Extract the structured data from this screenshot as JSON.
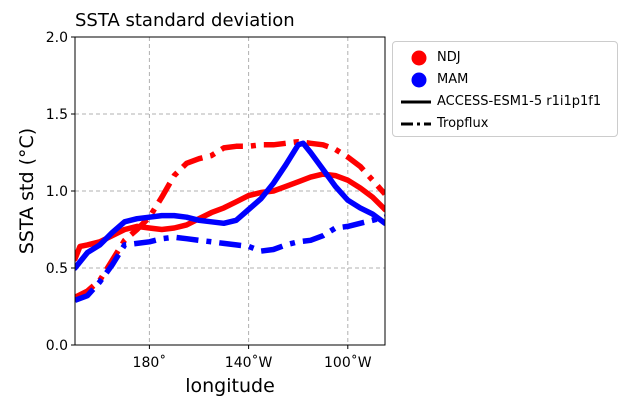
{
  "chart_data": {
    "type": "line",
    "title": "SSTA standard deviation",
    "xlabel": "longitude",
    "ylabel": "SSTA std ($^\\circ$C)",
    "ylabel_display": "SSTA std (°C)",
    "xlim": [
      150,
      275
    ],
    "ylim": [
      0.0,
      2.0
    ],
    "yticks": [
      0.0,
      0.5,
      1.0,
      1.5,
      2.0
    ],
    "ytick_labels": [
      "0.0",
      "0.5",
      "1.0",
      "1.5",
      "2.0"
    ],
    "xticks": [
      180,
      220,
      260
    ],
    "xtick_labels": [
      "180˚",
      "140˚W",
      "100˚W"
    ],
    "grid": true,
    "legend_placement": "outside-right-top",
    "colors": {
      "NDJ": "#ff0000",
      "MAM": "#0000ff"
    },
    "legend": [
      {
        "label": "NDJ",
        "marker": "circle",
        "color": "#ff0000"
      },
      {
        "label": "MAM",
        "marker": "circle",
        "color": "#0000ff"
      },
      {
        "label": "ACCESS-ESM1-5 r1i1p1f1",
        "linestyle": "solid",
        "color": "#000000"
      },
      {
        "label": "Tropflux",
        "linestyle": "dashdot",
        "color": "#000000"
      }
    ],
    "series": [
      {
        "season": "NDJ",
        "source": "ACCESS-ESM1-5 r1i1p1f1",
        "color": "#ff0000",
        "linestyle": "solid",
        "x": [
          150,
          152,
          155,
          160,
          165,
          170,
          175,
          180,
          185,
          190,
          195,
          200,
          205,
          210,
          215,
          220,
          225,
          230,
          235,
          240,
          245,
          250,
          255,
          260,
          265,
          270,
          275
        ],
        "y": [
          0.56,
          0.64,
          0.65,
          0.67,
          0.71,
          0.75,
          0.77,
          0.76,
          0.75,
          0.76,
          0.78,
          0.82,
          0.86,
          0.89,
          0.93,
          0.97,
          0.99,
          1.0,
          1.03,
          1.06,
          1.09,
          1.11,
          1.1,
          1.07,
          1.02,
          0.96,
          0.88
        ]
      },
      {
        "season": "NDJ",
        "source": "Tropflux",
        "color": "#ff0000",
        "linestyle": "dashdot",
        "x": [
          150,
          155,
          160,
          165,
          170,
          175,
          180,
          185,
          190,
          195,
          200,
          205,
          210,
          215,
          220,
          225,
          230,
          235,
          240,
          245,
          250,
          255,
          260,
          265,
          270,
          275
        ],
        "y": [
          0.31,
          0.35,
          0.42,
          0.55,
          0.68,
          0.75,
          0.83,
          0.96,
          1.1,
          1.18,
          1.21,
          1.23,
          1.28,
          1.29,
          1.29,
          1.3,
          1.3,
          1.31,
          1.32,
          1.31,
          1.3,
          1.27,
          1.22,
          1.16,
          1.07,
          0.98
        ]
      },
      {
        "season": "MAM",
        "source": "ACCESS-ESM1-5 r1i1p1f1",
        "color": "#0000ff",
        "linestyle": "solid",
        "x": [
          150,
          155,
          160,
          165,
          170,
          175,
          180,
          185,
          190,
          195,
          200,
          205,
          210,
          215,
          220,
          225,
          230,
          235,
          240,
          242,
          245,
          250,
          255,
          260,
          265,
          270,
          275
        ],
        "y": [
          0.5,
          0.6,
          0.65,
          0.73,
          0.8,
          0.82,
          0.83,
          0.84,
          0.84,
          0.83,
          0.81,
          0.8,
          0.79,
          0.81,
          0.88,
          0.95,
          1.05,
          1.17,
          1.3,
          1.31,
          1.25,
          1.14,
          1.03,
          0.94,
          0.89,
          0.85,
          0.79
        ]
      },
      {
        "season": "MAM",
        "source": "Tropflux",
        "color": "#0000ff",
        "linestyle": "dashdot",
        "x": [
          150,
          155,
          160,
          165,
          170,
          175,
          180,
          185,
          190,
          195,
          200,
          205,
          210,
          215,
          220,
          225,
          230,
          235,
          240,
          245,
          250,
          255,
          260,
          265,
          270,
          275
        ],
        "y": [
          0.29,
          0.32,
          0.41,
          0.52,
          0.65,
          0.66,
          0.67,
          0.69,
          0.7,
          0.69,
          0.68,
          0.67,
          0.66,
          0.65,
          0.64,
          0.61,
          0.62,
          0.65,
          0.67,
          0.68,
          0.71,
          0.76,
          0.77,
          0.79,
          0.81,
          0.83
        ]
      }
    ]
  }
}
